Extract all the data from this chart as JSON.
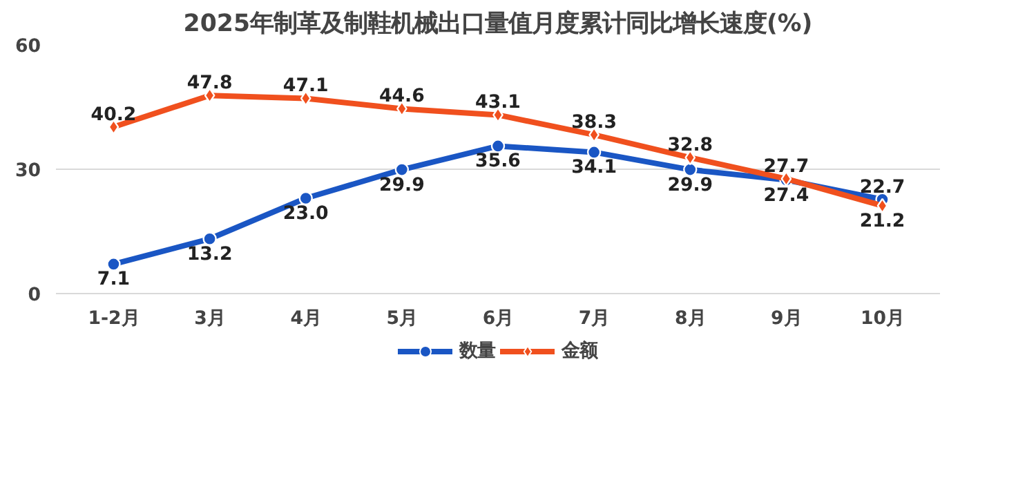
{
  "chart_data": {
    "type": "line",
    "title": "2025年制革及制鞋机械出口量值月度累计同比增长速度(%)",
    "categories": [
      "1-2月",
      "3月",
      "4月",
      "5月",
      "6月",
      "7月",
      "8月",
      "9月",
      "10月"
    ],
    "series": [
      {
        "name": "数量",
        "color": "#1a56c4",
        "marker": "circle",
        "values": [
          7.1,
          13.2,
          23.0,
          29.9,
          35.6,
          34.1,
          29.9,
          27.4,
          22.7
        ],
        "value_labels": [
          "7.1",
          "13.2",
          "23.0",
          "29.9",
          "35.6",
          "34.1",
          "29.9",
          "27.4",
          "22.7"
        ]
      },
      {
        "name": "金额",
        "color": "#f0501e",
        "marker": "diamond",
        "values": [
          40.2,
          47.8,
          47.1,
          44.6,
          43.1,
          38.3,
          32.8,
          27.7,
          21.2
        ],
        "value_labels": [
          "40.2",
          "47.8",
          "47.1",
          "44.6",
          "43.1",
          "38.3",
          "32.8",
          "27.7",
          "21.2"
        ]
      }
    ],
    "ylim": [
      0,
      60
    ],
    "yticks": [
      0,
      30,
      60
    ],
    "grid": "y",
    "legend": "bottom"
  }
}
